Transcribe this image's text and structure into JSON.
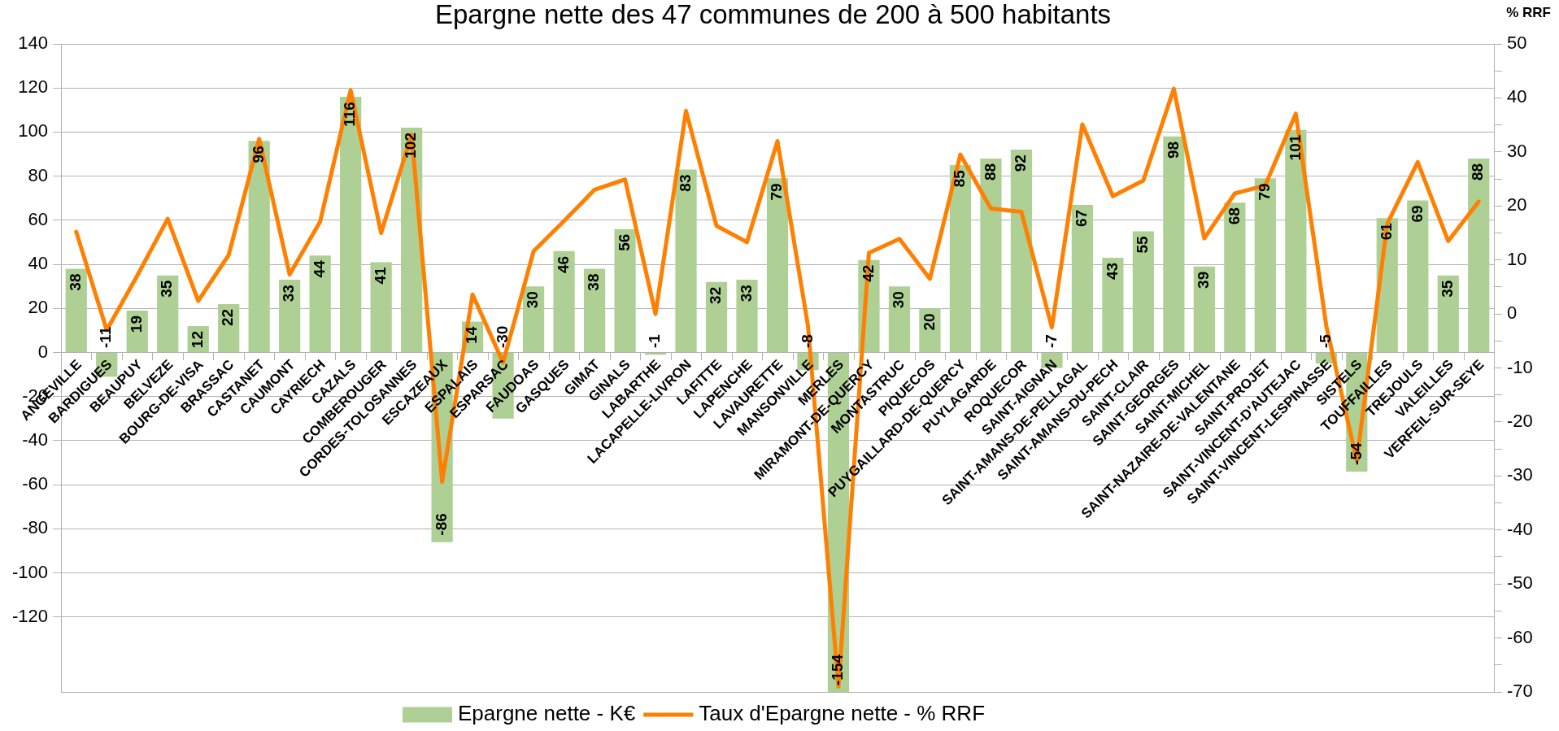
{
  "chart_data": {
    "type": "bar",
    "title": "Epargne nette des 47 communes de 200 à 500 habitants",
    "y2label": "% RRF",
    "categories": [
      "ANGEVILLE",
      "BARDIGUES",
      "BEAUPUY",
      "BELVEZE",
      "BOURG-DE-VISA",
      "BRASSAC",
      "CASTANET",
      "CAUMONT",
      "CAYRIECH",
      "CAZALS",
      "COMBEROUGER",
      "CORDES-TOLOSANNES",
      "ESCAZEAUX",
      "ESPALAIS",
      "ESPARSAC",
      "FAUDOAS",
      "GASQUES",
      "GIMAT",
      "GINALS",
      "LABARTHE",
      "LACAPELLE-LIVRON",
      "LAFITTE",
      "LAPENCHE",
      "LAVAURETTE",
      "MANSONVILLE",
      "MERLES",
      "MIRAMONT-DE-QUERCY",
      "MONTASTRUC",
      "PIQUECOS",
      "PUYGAILLARD-DE-QUERCY",
      "PUYLAGARDE",
      "ROQUECOR",
      "SAINT-AIGNAN",
      "SAINT-AMANS-DE-PELLAGAL",
      "SAINT-AMANS-DU-PECH",
      "SAINT-CLAIR",
      "SAINT-GEORGES",
      "SAINT-MICHEL",
      "SAINT-NAZAIRE-DE-VALENTANE",
      "SAINT-PROJET",
      "SAINT-VINCENT-D'AUTEJAC",
      "SAINT-VINCENT-LESPINASSE",
      "SISTELS",
      "TOUFFAILLES",
      "TREJOULS",
      "VALEILLES",
      "VERFEIL-SUR-SEYE"
    ],
    "series": [
      {
        "name": "Epargne nette - K€",
        "color": "#afd095",
        "values": [
          38,
          -11,
          19,
          35,
          12,
          22,
          96,
          33,
          44,
          116,
          41,
          102,
          -86,
          14,
          -30,
          30,
          46,
          38,
          56,
          -1,
          83,
          32,
          33,
          79,
          -8,
          -154,
          42,
          30,
          20,
          85,
          88,
          92,
          -7,
          67,
          43,
          55,
          98,
          39,
          68,
          79,
          101,
          -5,
          -54,
          61,
          69,
          35,
          88
        ],
        "value_labels": [
          "38",
          "-11",
          "19",
          "35",
          "12",
          "22",
          "96",
          "33",
          "44",
          "116",
          "41",
          "102",
          "-86",
          "14",
          "-30",
          "30",
          "46",
          "38",
          "56",
          "-1",
          "83",
          "32",
          "33",
          "79",
          "-8",
          "-154",
          "42",
          "30",
          "20",
          "85",
          "88",
          "92",
          "-7",
          "67",
          "43",
          "55",
          "98",
          "39",
          "68",
          "79",
          "101",
          "-5",
          "-54",
          "61",
          "69",
          "35",
          "88"
        ]
      },
      {
        "name": "Taux d'Epargne nette - % RRF",
        "type": "line",
        "axis": "y2",
        "color": "#ff8000",
        "marker": "none",
        "values": [
          15.2,
          -3.0,
          7.1,
          17.6,
          2.4,
          10.9,
          32.4,
          7.3,
          17.1,
          41.4,
          15.0,
          33.2,
          -31.1,
          3.6,
          -9.0,
          11.6,
          17.2,
          23.0,
          24.9,
          0,
          37.6,
          16.3,
          13.3,
          32.0,
          -2.2,
          -69,
          11.3,
          13.9,
          6.5,
          29.5,
          19.5,
          18.9,
          -2.5,
          35.1,
          21.8,
          24.7,
          41.7,
          14.0,
          22.3,
          23.8,
          37.1,
          -2.2,
          -27.2,
          16.7,
          28.1,
          13.5,
          20.8
        ]
      }
    ],
    "ylim": [
      -154,
      140
    ],
    "yticks": [
      -120,
      -100,
      -80,
      -60,
      -40,
      -20,
      0,
      20,
      40,
      60,
      80,
      100,
      120,
      140
    ],
    "y2lim": [
      -70,
      50
    ],
    "y2ticks": [
      -70,
      {
        "value": -65,
        "label": null
      },
      -60,
      {
        "value": -55,
        "label": null
      },
      -50,
      {
        "value": -45,
        "label": null
      },
      -40,
      {
        "value": -35,
        "label": null
      },
      -30,
      {
        "value": -25,
        "label": null
      },
      -20,
      {
        "value": -15,
        "label": null
      },
      -10,
      {
        "value": -5,
        "label": null
      },
      0,
      {
        "value": 5,
        "label": null
      },
      10,
      {
        "value": 15,
        "label": null
      },
      20,
      {
        "value": 25,
        "label": null
      },
      30,
      {
        "value": 35,
        "label": null
      },
      40,
      {
        "value": 45,
        "label": null
      },
      50
    ],
    "grid": "y",
    "legend": "bottom"
  }
}
